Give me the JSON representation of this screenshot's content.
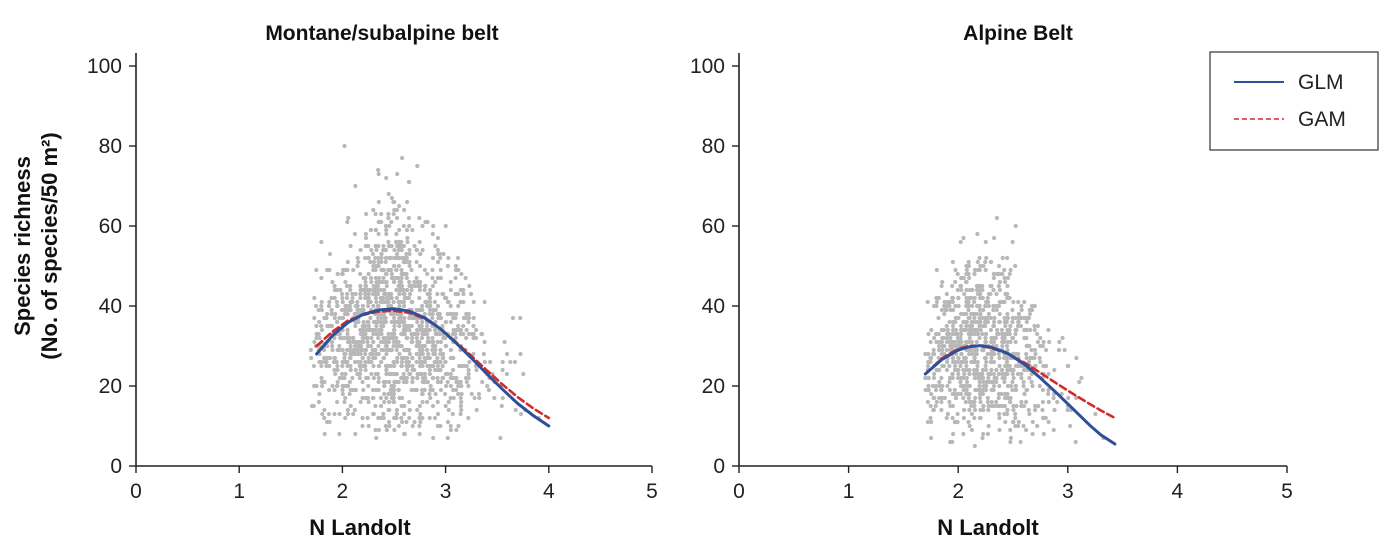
{
  "chart_data": [
    {
      "type": "scatter",
      "title": "Montane/subalpine belt",
      "xlabel": "N Landolt",
      "ylabel": [
        "Species richness",
        "(No. of species/50 m²)"
      ],
      "xlim": [
        0,
        5
      ],
      "ylim": [
        0,
        100
      ],
      "xticks": [
        0,
        1,
        2,
        3,
        4,
        5
      ],
      "yticks": [
        0,
        20,
        40,
        60,
        80,
        100
      ],
      "grid": false,
      "series": [
        {
          "name": "GLM",
          "kind": "line",
          "color": "#2e4f9a",
          "x": [
            1.75,
            1.9,
            2.05,
            2.2,
            2.35,
            2.5,
            2.65,
            2.8,
            2.95,
            3.1,
            3.25,
            3.4,
            3.55,
            3.7,
            3.85,
            4.0
          ],
          "y": [
            28,
            32.5,
            35.8,
            37.9,
            39.0,
            39.3,
            38.7,
            37.0,
            34.3,
            30.8,
            27.0,
            23.0,
            19.2,
            15.6,
            12.6,
            10
          ]
        },
        {
          "name": "GAM",
          "kind": "line",
          "color": "#d42a2a",
          "x": [
            1.75,
            1.9,
            2.05,
            2.2,
            2.35,
            2.5,
            2.65,
            2.8,
            2.95,
            3.1,
            3.25,
            3.4,
            3.55,
            3.7,
            3.85,
            4.0
          ],
          "y": [
            30,
            33.5,
            36.3,
            37.8,
            38.6,
            38.8,
            38.3,
            36.8,
            34.3,
            31.0,
            27.5,
            23.9,
            20.4,
            17.2,
            14.4,
            12
          ]
        }
      ],
      "points_summary": {
        "count": 1400,
        "x_range": [
          1.7,
          4.0
        ],
        "center_x": 2.5,
        "y_center": 38,
        "y_range": [
          7,
          88
        ],
        "color": "#b8b8b8"
      }
    },
    {
      "type": "scatter",
      "title": "Alpine Belt",
      "xlabel": "N Landolt",
      "ylabel": "",
      "xlim": [
        0,
        5
      ],
      "ylim": [
        0,
        100
      ],
      "xticks": [
        0,
        1,
        2,
        3,
        4,
        5
      ],
      "yticks": [
        0,
        20,
        40,
        60,
        80,
        100
      ],
      "grid": false,
      "legend": {
        "placement": "top-right",
        "entries": [
          {
            "label": "GLM",
            "style": "solid",
            "color": "#2e4f9a"
          },
          {
            "label": "GAM",
            "style": "dashed",
            "color": "#d42a2a"
          }
        ]
      },
      "series": [
        {
          "name": "GLM",
          "kind": "line",
          "color": "#2e4f9a",
          "x": [
            1.7,
            1.85,
            2.0,
            2.1,
            2.2,
            2.3,
            2.45,
            2.6,
            2.75,
            2.9,
            3.05,
            3.2,
            3.3,
            3.43
          ],
          "y": [
            23,
            26.6,
            29.0,
            29.8,
            30.1,
            29.7,
            28.2,
            25.5,
            22.0,
            18.2,
            14.2,
            10.2,
            7.8,
            5.5
          ]
        },
        {
          "name": "GAM",
          "kind": "line",
          "color": "#d42a2a",
          "x": [
            1.7,
            1.85,
            2.0,
            2.1,
            2.2,
            2.3,
            2.45,
            2.6,
            2.75,
            2.9,
            3.05,
            3.2,
            3.3,
            3.43
          ],
          "y": [
            23,
            26.9,
            29.3,
            30.0,
            30.0,
            29.5,
            28.1,
            25.9,
            23.3,
            20.6,
            18.0,
            15.5,
            13.9,
            12
          ]
        }
      ],
      "points_summary": {
        "count": 900,
        "x_range": [
          1.7,
          3.45
        ],
        "center_x": 2.2,
        "y_center": 32,
        "y_range": [
          5,
          71
        ],
        "color": "#b8b8b8"
      }
    }
  ]
}
